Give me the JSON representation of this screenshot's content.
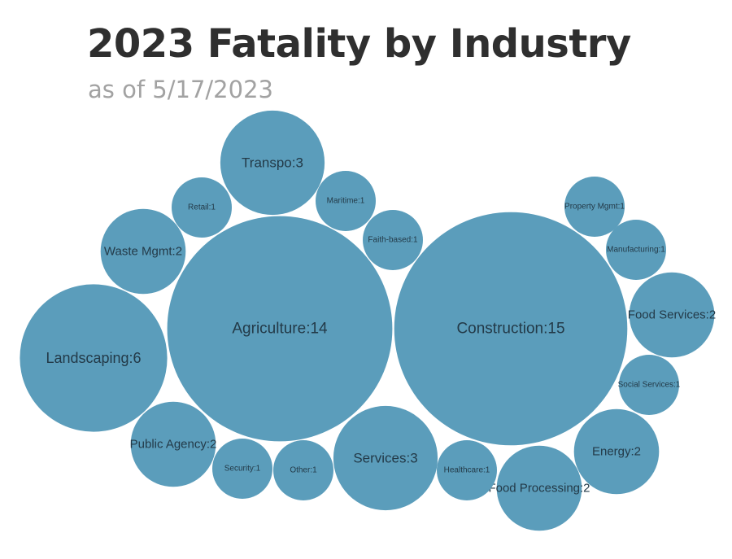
{
  "chart_data": {
    "type": "bubble",
    "title": "2023 Fatality by Industry",
    "subtitle": "as of 5/17/2023",
    "color": "#5b9dbb",
    "label_format": "{name}:{value}",
    "items": [
      {
        "name": "Construction",
        "value": 15
      },
      {
        "name": "Agriculture",
        "value": 14
      },
      {
        "name": "Landscaping",
        "value": 6
      },
      {
        "name": "Transpo",
        "value": 3
      },
      {
        "name": "Services",
        "value": 3
      },
      {
        "name": "Waste Mgmt",
        "value": 2
      },
      {
        "name": "Public Agency",
        "value": 2
      },
      {
        "name": "Food Services",
        "value": 2
      },
      {
        "name": "Energy",
        "value": 2
      },
      {
        "name": "Food Processing",
        "value": 2
      },
      {
        "name": "Retail",
        "value": 1
      },
      {
        "name": "Maritime",
        "value": 1
      },
      {
        "name": "Faith-based",
        "value": 1
      },
      {
        "name": "Property Mgmt",
        "value": 1
      },
      {
        "name": "Manufacturing",
        "value": 1
      },
      {
        "name": "Social Services",
        "value": 1
      },
      {
        "name": "Security",
        "value": 1
      },
      {
        "name": "Other",
        "value": 1
      },
      {
        "name": "Healthcare",
        "value": 1
      }
    ]
  }
}
